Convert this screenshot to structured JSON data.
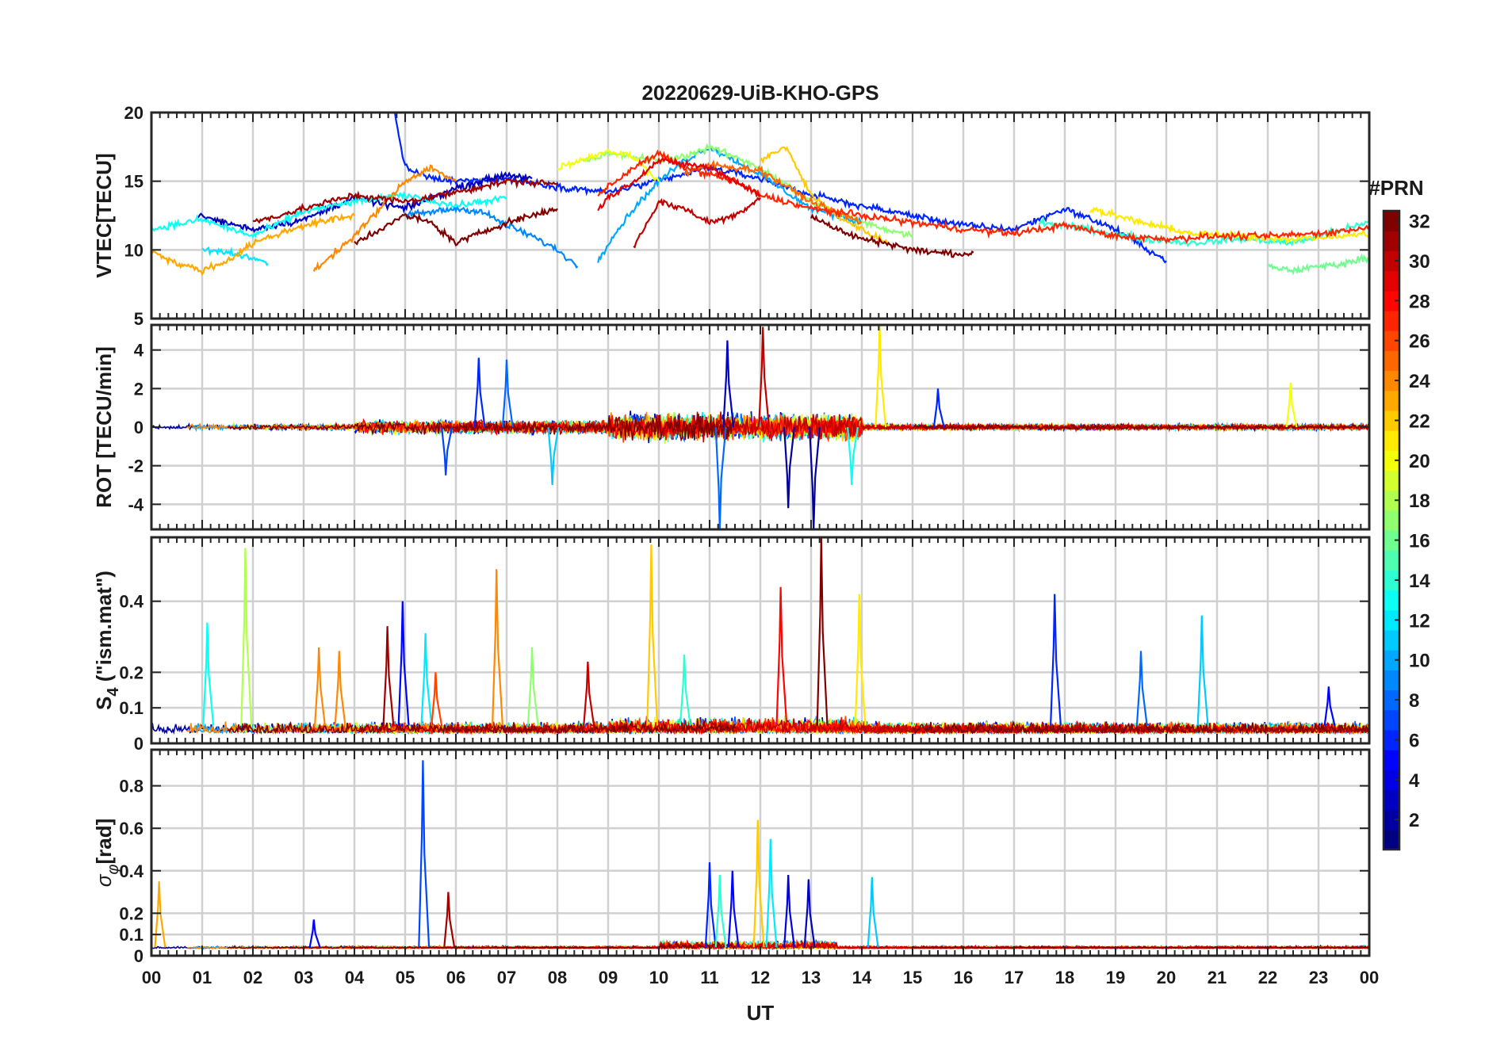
{
  "chart_data": [
    {
      "type": "line",
      "title": "20220629-UiB-KHO-GPS",
      "ylabel": "VTEC[TECU]",
      "ylim": [
        5,
        20
      ],
      "yticks": [
        5,
        10,
        15,
        20
      ],
      "xlim": [
        0,
        24
      ],
      "grid": true,
      "series_note": "multiple GPS PRN traces colored by PRN (jet colormap)",
      "series": [
        {
          "prn": 6,
          "x": [
            4.8,
            5.0,
            5.5,
            6.0,
            7.0,
            8.0,
            9.0,
            10.0,
            11.0,
            12.0,
            13.0,
            14.0,
            15.0,
            16.0,
            17.0,
            18.0,
            19.0,
            20.0
          ],
          "values": [
            19.8,
            16.0,
            15.2,
            15.0,
            15.2,
            14.6,
            14.2,
            15.0,
            16.0,
            15.2,
            14.0,
            13.2,
            12.5,
            11.8,
            11.5,
            13.0,
            11.5,
            9.2
          ]
        },
        {
          "prn": 3,
          "x": [
            0.9,
            2.0,
            3.0,
            4.0,
            5.0,
            6.0,
            7.0,
            7.5
          ],
          "values": [
            12.5,
            11.5,
            12.2,
            13.8,
            13.0,
            14.5,
            15.5,
            15.2
          ]
        },
        {
          "prn": 9,
          "x": [
            5.0,
            6.0,
            6.5,
            7.0,
            7.5,
            8.0,
            8.4
          ],
          "values": [
            12.5,
            13.0,
            12.8,
            11.8,
            11.0,
            10.0,
            8.8
          ]
        },
        {
          "prn": 10,
          "x": [
            8.8,
            9.0,
            9.5,
            10.0,
            10.5,
            11.0,
            12.0,
            13.0,
            14.0
          ],
          "values": [
            9.2,
            10.5,
            13.0,
            15.0,
            16.5,
            17.5,
            15.5,
            13.0,
            12.0
          ]
        },
        {
          "prn": 13,
          "x": [
            0.0,
            1.0,
            2.0,
            3.0,
            4.0,
            5.0,
            6.0,
            7.0
          ],
          "values": [
            11.5,
            12.2,
            11.0,
            12.8,
            13.5,
            14.0,
            13.2,
            13.8
          ]
        },
        {
          "prn": 12,
          "x": [
            1.0,
            1.5,
            2.0,
            2.3
          ],
          "values": [
            10.0,
            9.8,
            9.4,
            9.0
          ]
        },
        {
          "prn": 14,
          "x": [
            17.5,
            18.5,
            19.5,
            20.5,
            21.5,
            22.5,
            23.5,
            24.0
          ],
          "values": [
            12.0,
            11.5,
            10.8,
            10.5,
            10.8,
            10.5,
            11.5,
            12.0
          ]
        },
        {
          "prn": 16,
          "x": [
            22.0,
            22.5,
            23.0,
            23.5,
            24.0
          ],
          "values": [
            8.8,
            8.5,
            8.8,
            9.0,
            9.5
          ]
        },
        {
          "prn": 17,
          "x": [
            8.5,
            9.0,
            10.0,
            10.5,
            11.0,
            12.0,
            13.0,
            14.0,
            15.0
          ],
          "values": [
            16.5,
            17.0,
            16.5,
            16.8,
            17.5,
            16.0,
            13.5,
            12.0,
            11.0
          ]
        },
        {
          "prn": 20,
          "x": [
            8.0,
            9.0,
            9.5,
            10.0
          ],
          "values": [
            16.0,
            17.2,
            16.8,
            15.0
          ]
        },
        {
          "prn": 21,
          "x": [
            18.5,
            19.5,
            20.5,
            21.5,
            22.5,
            23.5,
            24.0
          ],
          "values": [
            13.0,
            12.0,
            11.2,
            11.0,
            10.8,
            11.0,
            11.2
          ]
        },
        {
          "prn": 22,
          "x": [
            12.0,
            12.5,
            13.0,
            13.5,
            14.0,
            14.5
          ],
          "values": [
            16.5,
            17.5,
            14.0,
            12.5,
            11.5,
            10.5
          ]
        },
        {
          "prn": 23,
          "x": [
            0.0,
            0.5,
            1.0,
            1.5,
            2.0,
            3.0,
            4.0
          ],
          "values": [
            10.0,
            9.0,
            8.5,
            9.2,
            10.5,
            11.8,
            12.5
          ]
        },
        {
          "prn": 24,
          "x": [
            3.2,
            4.0,
            5.0,
            5.5,
            6.0
          ],
          "values": [
            8.5,
            11.0,
            15.0,
            16.0,
            15.0
          ]
        },
        {
          "prn": 25,
          "x": [
            10.5,
            11.0,
            12.0,
            13.0,
            14.0
          ],
          "values": [
            15.5,
            16.2,
            15.8,
            13.5,
            12.0
          ]
        },
        {
          "prn": 27,
          "x": [
            8.8,
            9.5,
            10.0,
            10.5,
            11.5,
            12.0,
            13.0,
            14.0,
            15.0,
            16.0,
            17.0,
            18.0,
            19.0,
            20.0,
            21.0,
            22.0,
            23.0,
            24.0
          ],
          "values": [
            14.0,
            16.0,
            17.0,
            16.0,
            15.0,
            14.0,
            13.0,
            12.5,
            12.0,
            11.5,
            11.2,
            11.8,
            11.0,
            10.8,
            11.0,
            11.0,
            11.2,
            11.6
          ]
        },
        {
          "prn": 29,
          "x": [
            8.8,
            9.0,
            9.5,
            10.0,
            11.0,
            11.5,
            12.0
          ],
          "values": [
            13.0,
            13.8,
            15.0,
            16.5,
            16.0,
            15.0,
            14.0
          ]
        },
        {
          "prn": 31,
          "x": [
            2.0,
            3.0,
            4.0,
            5.0,
            6.0,
            7.0,
            8.0
          ],
          "values": [
            12.0,
            13.0,
            14.0,
            13.5,
            14.2,
            15.0,
            14.8
          ]
        },
        {
          "prn": 32,
          "x": [
            4.0,
            5.0,
            5.5,
            6.0,
            7.0,
            8.0
          ],
          "values": [
            10.5,
            12.5,
            12.0,
            10.5,
            12.0,
            13.0
          ]
        },
        {
          "prn": 30,
          "x": [
            9.5,
            10.0,
            10.5,
            11.0,
            11.5,
            12.0
          ],
          "values": [
            10.2,
            13.5,
            13.0,
            12.0,
            12.5,
            13.8
          ]
        },
        {
          "prn": 32,
          "x": [
            13.0,
            13.5,
            14.0,
            14.5,
            15.0,
            15.5,
            16.0,
            16.2
          ],
          "values": [
            12.5,
            11.5,
            10.8,
            10.5,
            10.0,
            9.8,
            9.7,
            9.8
          ]
        }
      ]
    },
    {
      "type": "line",
      "ylabel": "ROT [TECU/min]",
      "ylim": [
        -5.3,
        5.3
      ],
      "yticks": [
        -4,
        -2,
        0,
        2,
        4
      ],
      "xlim": [
        0,
        24
      ],
      "grid": true,
      "series_note": "noisy rate-of-TEC traces per PRN, baseline near 0",
      "spikes": [
        {
          "prn": 6,
          "x": 6.45,
          "value": 3.6
        },
        {
          "prn": 8,
          "x": 7.0,
          "value": 3.5
        },
        {
          "prn": 8,
          "x": 11.2,
          "value": -5.3
        },
        {
          "prn": 3,
          "x": 11.35,
          "value": 4.5
        },
        {
          "prn": 30,
          "x": 12.05,
          "value": 5.2
        },
        {
          "prn": 2,
          "x": 12.55,
          "value": -4.2
        },
        {
          "prn": 2,
          "x": 13.05,
          "value": -5.3
        },
        {
          "prn": 21,
          "x": 14.35,
          "value": 5.3
        },
        {
          "prn": 20,
          "x": 22.45,
          "value": 2.3
        },
        {
          "prn": 7,
          "x": 5.8,
          "value": -2.5
        },
        {
          "prn": 11,
          "x": 7.9,
          "value": -3.0
        },
        {
          "prn": 6,
          "x": 15.5,
          "value": 2.0
        },
        {
          "prn": 13,
          "x": 13.8,
          "value": -3.0
        }
      ]
    },
    {
      "type": "line",
      "ylabel": "S4 (\"ism.mat\")",
      "ylabel_main": "S",
      "ylabel_sub": "4",
      "ylabel_rest": " (\"ism.mat\")",
      "ylim": [
        0,
        0.58
      ],
      "yticks": [
        0,
        0.1,
        0.2,
        0.4
      ],
      "ytick_labels": [
        "0",
        "0.1",
        "0.2",
        "0.4"
      ],
      "xlim": [
        0,
        24
      ],
      "grid": true,
      "series_note": "amplitude scintillation index per PRN",
      "spikes": [
        {
          "prn": 13,
          "x": 1.1,
          "value": 0.34
        },
        {
          "prn": 18,
          "x": 1.85,
          "value": 0.55
        },
        {
          "prn": 24,
          "x": 3.3,
          "value": 0.27
        },
        {
          "prn": 24,
          "x": 3.7,
          "value": 0.26
        },
        {
          "prn": 31,
          "x": 4.65,
          "value": 0.33
        },
        {
          "prn": 5,
          "x": 4.95,
          "value": 0.4
        },
        {
          "prn": 12,
          "x": 5.4,
          "value": 0.31
        },
        {
          "prn": 26,
          "x": 5.6,
          "value": 0.2
        },
        {
          "prn": 24,
          "x": 6.8,
          "value": 0.49
        },
        {
          "prn": 17,
          "x": 7.5,
          "value": 0.27
        },
        {
          "prn": 30,
          "x": 8.6,
          "value": 0.23
        },
        {
          "prn": 22,
          "x": 9.85,
          "value": 0.56
        },
        {
          "prn": 14,
          "x": 10.5,
          "value": 0.25
        },
        {
          "prn": 28,
          "x": 12.4,
          "value": 0.44
        },
        {
          "prn": 32,
          "x": 13.2,
          "value": 0.58
        },
        {
          "prn": 21,
          "x": 13.95,
          "value": 0.42
        },
        {
          "prn": 6,
          "x": 17.8,
          "value": 0.42
        },
        {
          "prn": 11,
          "x": 20.7,
          "value": 0.36
        },
        {
          "prn": 8,
          "x": 19.5,
          "value": 0.26
        },
        {
          "prn": 5,
          "x": 23.2,
          "value": 0.16
        }
      ]
    },
    {
      "type": "line",
      "ylabel": "σφ[rad]",
      "ylabel_main": "σ",
      "ylabel_sub": "φ",
      "ylabel_rest": "[rad]",
      "ylim": [
        0,
        0.97
      ],
      "yticks": [
        0,
        0.1,
        0.2,
        0.4,
        0.6,
        0.8
      ],
      "ytick_labels": [
        "0",
        "0.1",
        "0.2",
        "0.4",
        "0.6",
        "0.8"
      ],
      "xlim": [
        0,
        24
      ],
      "grid": true,
      "xlabel": "UT",
      "xticks": [
        0,
        1,
        2,
        3,
        4,
        5,
        6,
        7,
        8,
        9,
        10,
        11,
        12,
        13,
        14,
        15,
        16,
        17,
        18,
        19,
        20,
        21,
        22,
        23,
        24
      ],
      "xtick_labels": [
        "00",
        "01",
        "02",
        "03",
        "04",
        "05",
        "06",
        "07",
        "08",
        "09",
        "10",
        "11",
        "12",
        "13",
        "14",
        "15",
        "16",
        "17",
        "18",
        "19",
        "20",
        "21",
        "22",
        "23",
        "00"
      ],
      "series_note": "phase scintillation index per PRN",
      "spikes": [
        {
          "prn": 23,
          "x": 0.15,
          "value": 0.35
        },
        {
          "prn": 5,
          "x": 3.2,
          "value": 0.17
        },
        {
          "prn": 7,
          "x": 5.35,
          "value": 0.92
        },
        {
          "prn": 31,
          "x": 5.85,
          "value": 0.3
        },
        {
          "prn": 6,
          "x": 11.0,
          "value": 0.44
        },
        {
          "prn": 14,
          "x": 11.2,
          "value": 0.38
        },
        {
          "prn": 5,
          "x": 11.45,
          "value": 0.4
        },
        {
          "prn": 22,
          "x": 11.95,
          "value": 0.64
        },
        {
          "prn": 12,
          "x": 12.2,
          "value": 0.55
        },
        {
          "prn": 4,
          "x": 12.55,
          "value": 0.38
        },
        {
          "prn": 3,
          "x": 12.95,
          "value": 0.36
        },
        {
          "prn": 11,
          "x": 14.2,
          "value": 0.37
        }
      ]
    }
  ],
  "colorbar": {
    "title": "#PRN",
    "min": 1,
    "max": 32,
    "tick_labels": [
      "2",
      "4",
      "6",
      "8",
      "10",
      "12",
      "14",
      "16",
      "18",
      "20",
      "22",
      "24",
      "26",
      "28",
      "30",
      "32"
    ],
    "colormap": "jet"
  }
}
